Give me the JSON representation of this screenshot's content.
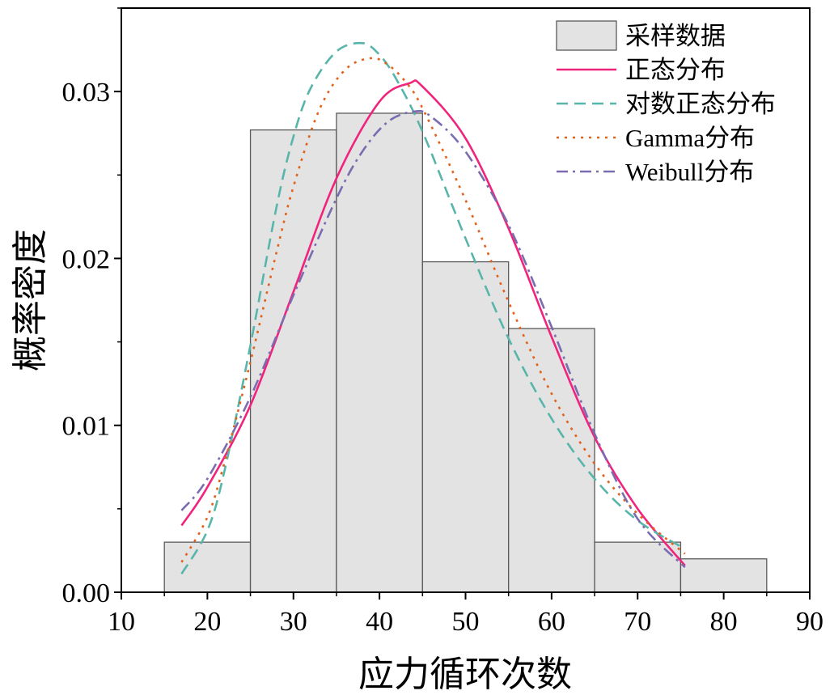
{
  "chart_data": {
    "type": "histogram",
    "xlabel": "应力循环次数",
    "ylabel": "概率密度",
    "xlim": [
      10,
      90
    ],
    "ylim": [
      0,
      0.035
    ],
    "xticks": [
      10,
      20,
      30,
      40,
      50,
      60,
      70,
      80,
      90
    ],
    "yticks": [
      0.0,
      0.01,
      0.02,
      0.03
    ],
    "ytick_labels": [
      "0.00",
      "0.01",
      "0.02",
      "0.03"
    ],
    "bins": [
      {
        "start": 15,
        "end": 25,
        "value": 0.003
      },
      {
        "start": 25,
        "end": 35,
        "value": 0.0277
      },
      {
        "start": 35,
        "end": 45,
        "value": 0.0287
      },
      {
        "start": 45,
        "end": 55,
        "value": 0.0198
      },
      {
        "start": 55,
        "end": 65,
        "value": 0.0158
      },
      {
        "start": 65,
        "end": 75,
        "value": 0.003
      },
      {
        "start": 75,
        "end": 85,
        "value": 0.002
      }
    ],
    "hist_label": "采样数据",
    "hist_fill": "#e3e3e3",
    "hist_edge": "#5a5a5a",
    "series": [
      {
        "name": "正态分布",
        "style": "solid",
        "color": "#f0247c",
        "x": [
          17,
          20,
          25,
          30,
          35,
          40,
          43.5,
          45,
          50,
          55,
          60,
          65,
          70,
          75.5
        ],
        "y": [
          0.004,
          0.0063,
          0.0112,
          0.018,
          0.0248,
          0.0294,
          0.0305,
          0.0303,
          0.0272,
          0.0218,
          0.0153,
          0.0093,
          0.005,
          0.0016
        ]
      },
      {
        "name": "对数正态分布",
        "style": "dashed",
        "color": "#58b5aa",
        "x": [
          17,
          20,
          22,
          25,
          28,
          30,
          32,
          35,
          38,
          40,
          42,
          45,
          50,
          55,
          60,
          65,
          70,
          75.5
        ],
        "y": [
          0.0011,
          0.0037,
          0.0073,
          0.0148,
          0.023,
          0.0273,
          0.0302,
          0.0324,
          0.0329,
          0.0322,
          0.0307,
          0.0276,
          0.0212,
          0.0152,
          0.0104,
          0.0068,
          0.0043,
          0.0026
        ]
      },
      {
        "name": "Gamma分布",
        "style": "dotted",
        "color": "#e0621c",
        "x": [
          17,
          20,
          22,
          25,
          28,
          30,
          33,
          36,
          39,
          41,
          43,
          45,
          50,
          55,
          60,
          65,
          70,
          75.5
        ],
        "y": [
          0.0018,
          0.0045,
          0.0078,
          0.0138,
          0.0203,
          0.0243,
          0.0289,
          0.0313,
          0.032,
          0.0316,
          0.0306,
          0.029,
          0.0235,
          0.0174,
          0.0119,
          0.0077,
          0.0047,
          0.0023
        ]
      },
      {
        "name": "Weibull分布",
        "style": "dashdot",
        "color": "#7b6cb0",
        "x": [
          17,
          20,
          25,
          30,
          35,
          38,
          41,
          44,
          46,
          50,
          55,
          60,
          65,
          70,
          75.5
        ],
        "y": [
          0.0049,
          0.0068,
          0.0117,
          0.0178,
          0.0236,
          0.0264,
          0.0282,
          0.0288,
          0.0285,
          0.0264,
          0.022,
          0.0159,
          0.0095,
          0.0044,
          0.0015
        ]
      }
    ],
    "legend_position": "top-right"
  }
}
